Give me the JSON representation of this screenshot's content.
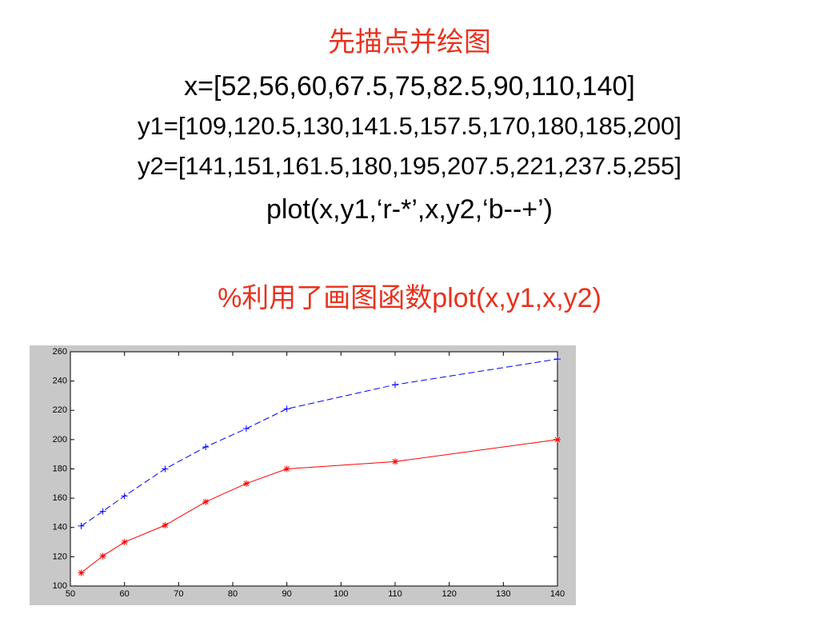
{
  "slide": {
    "heading": "先描点并绘图",
    "lines": [
      "x=[52,56,60,67.5,75,82.5,90,110,140]",
      "y1=[109,120.5,130,141.5,157.5,170,180,185,200]",
      "y2=[141,151,161.5,180,195,207.5,221,237.5,255]",
      "plot(x,y1,‘r-*’,x,y2,‘b--+’)"
    ],
    "comment": "%利用了画图函数plot(x,y1,x,y2)"
  },
  "chart_data": {
    "type": "line",
    "x": [
      52,
      56,
      60,
      67.5,
      75,
      82.5,
      90,
      110,
      140
    ],
    "series": [
      {
        "color": "#ff0000",
        "line_style": "solid",
        "marker": "star",
        "values": [
          109,
          120.5,
          130,
          141.5,
          157.5,
          170,
          180,
          185,
          200
        ]
      },
      {
        "color": "#0000ff",
        "line_style": "dashed",
        "marker": "plus",
        "values": [
          141,
          151,
          161.5,
          180,
          195,
          207.5,
          221,
          237.5,
          255
        ]
      }
    ],
    "xlim": [
      50,
      140
    ],
    "xticks": [
      50,
      60,
      70,
      80,
      90,
      100,
      110,
      120,
      130,
      140
    ],
    "ylim": [
      100,
      260
    ],
    "yticks": [
      100,
      120,
      140,
      160,
      180,
      200,
      220,
      240,
      260
    ]
  }
}
